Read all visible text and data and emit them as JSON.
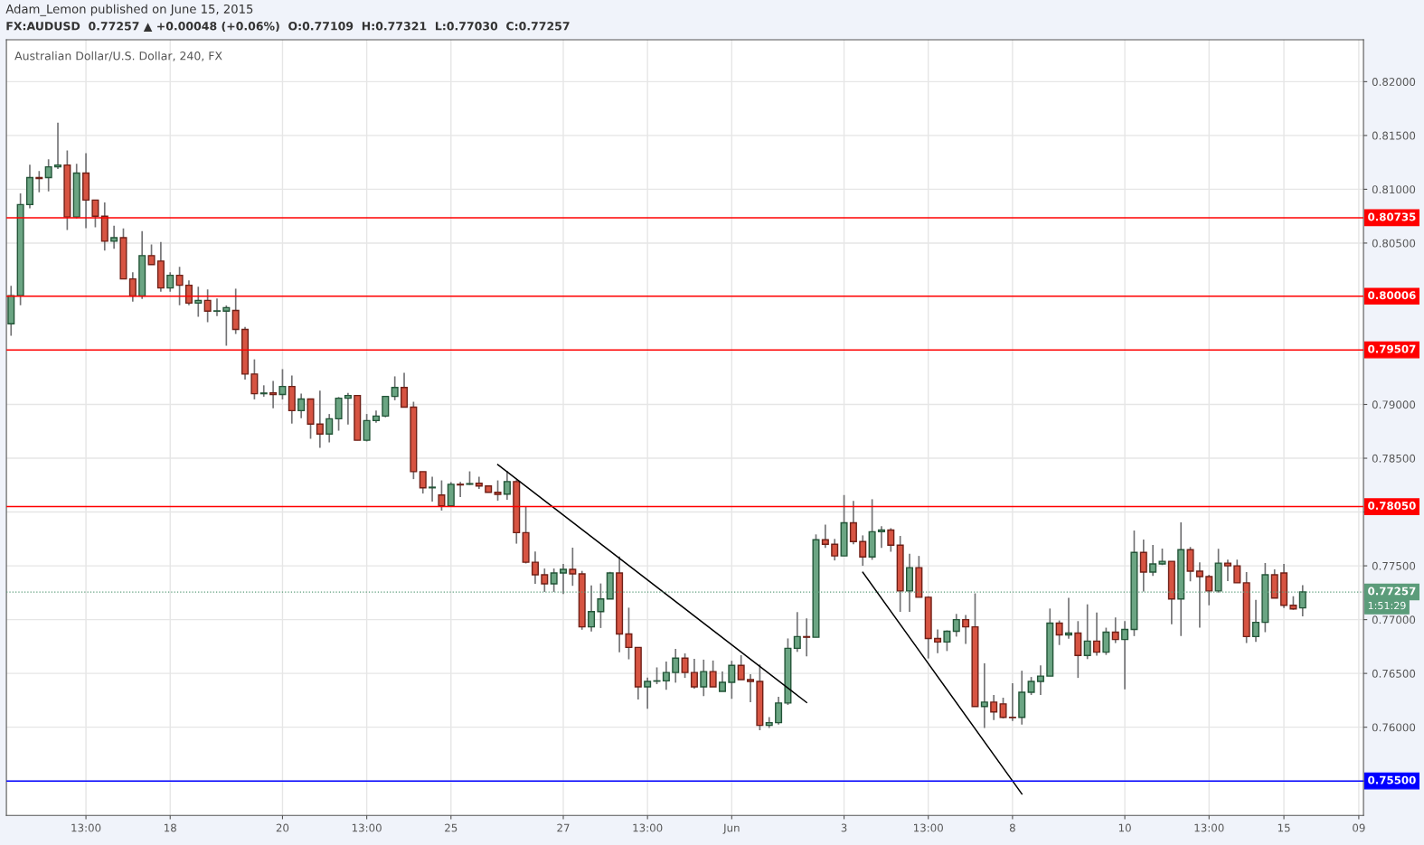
{
  "chart_data": {
    "type": "candlestick",
    "title": "Adam_Lemon published on June 15, 2015",
    "subtitle": "FX:AUDUSD  0.77257 ▲ +0.00048 (+0.06%)  O:0.77109  H:0.77321  L:0.77030  C:0.77257",
    "annotations": [
      "Australian Dollar/U.S. Dollar, 240, FX",
      "1:51:29"
    ],
    "categories": [
      null,
      null,
      null,
      null,
      null,
      null,
      null,
      null,
      "13:00",
      null,
      null,
      null,
      null,
      null,
      null,
      null,
      null,
      "18",
      null,
      null,
      null,
      null,
      null,
      null,
      null,
      null,
      null,
      null,
      null,
      "20",
      null,
      null,
      null,
      null,
      null,
      null,
      null,
      null,
      "13:00",
      null,
      null,
      null,
      null,
      null,
      null,
      null,
      null,
      "25",
      null,
      null,
      null,
      null,
      null,
      null,
      null,
      null,
      null,
      null,
      null,
      "27",
      null,
      null,
      null,
      null,
      null,
      null,
      null,
      null,
      "13:00",
      null,
      null,
      null,
      null,
      null,
      null,
      null,
      null,
      "Jun",
      null,
      null,
      null,
      null,
      null,
      null,
      null,
      null,
      null,
      null,
      null,
      "3",
      null,
      null,
      null,
      null,
      null,
      null,
      null,
      null,
      "13:00",
      null,
      null,
      null,
      null,
      null,
      null,
      null,
      null,
      "8",
      null,
      null,
      null,
      null,
      null,
      null,
      null,
      null,
      null,
      null,
      null,
      "10",
      null,
      null,
      null,
      null,
      null,
      null,
      null,
      null,
      "13:00",
      null,
      null,
      null,
      null,
      null,
      null,
      null,
      "15",
      null,
      null,
      null,
      null,
      null,
      null,
      null,
      "09"
    ],
    "ohlc": [
      [
        0.7975,
        0.80103,
        0.79639,
        0.80011
      ],
      [
        0.8001,
        0.80961,
        0.79922,
        0.80858
      ],
      [
        0.80858,
        0.81228,
        0.80822,
        0.81108
      ],
      [
        0.8111,
        0.81169,
        0.80972,
        0.811
      ],
      [
        0.81108,
        0.81278,
        0.80981,
        0.81208
      ],
      [
        0.81208,
        0.81619,
        0.81189,
        0.81225
      ],
      [
        0.81225,
        0.81361,
        0.80622,
        0.80742
      ],
      [
        0.80742,
        0.81236,
        0.80728,
        0.8115
      ],
      [
        0.8115,
        0.81336,
        0.80639,
        0.809
      ],
      [
        0.809,
        0.809,
        0.80647,
        0.8075
      ],
      [
        0.8075,
        0.80878,
        0.8043,
        0.80517
      ],
      [
        0.80517,
        0.80661,
        0.80447,
        0.8055
      ],
      [
        0.8055,
        0.80636,
        0.80167,
        0.80167
      ],
      [
        0.80167,
        0.80228,
        0.79956,
        0.80008
      ],
      [
        0.80008,
        0.80611,
        0.79981,
        0.80383
      ],
      [
        0.80383,
        0.80486,
        0.803,
        0.803
      ],
      [
        0.80333,
        0.80511,
        0.80047,
        0.80083
      ],
      [
        0.80083,
        0.80228,
        0.80047,
        0.802
      ],
      [
        0.802,
        0.80278,
        0.79922,
        0.80108
      ],
      [
        0.80108,
        0.80153,
        0.79922,
        0.79942
      ],
      [
        0.79942,
        0.80094,
        0.79814,
        0.79967
      ],
      [
        0.79967,
        0.8007,
        0.79764,
        0.79867
      ],
      [
        0.79867,
        0.79986,
        0.79822,
        0.7987
      ],
      [
        0.79867,
        0.7992,
        0.79546,
        0.799
      ],
      [
        0.79874,
        0.80076,
        0.79655,
        0.79697
      ],
      [
        0.79697,
        0.7972,
        0.79231,
        0.79283
      ],
      [
        0.79283,
        0.79419,
        0.79047,
        0.791
      ],
      [
        0.791,
        0.79178,
        0.79072,
        0.79106
      ],
      [
        0.79108,
        0.79219,
        0.78964,
        0.79092
      ],
      [
        0.79092,
        0.79328,
        0.79047,
        0.79167
      ],
      [
        0.79167,
        0.79269,
        0.78822,
        0.78942
      ],
      [
        0.78942,
        0.791,
        0.78872,
        0.7905
      ],
      [
        0.7905,
        0.7905,
        0.78681,
        0.78817
      ],
      [
        0.78817,
        0.79128,
        0.78597,
        0.78725
      ],
      [
        0.78725,
        0.78911,
        0.78647,
        0.78867
      ],
      [
        0.78867,
        0.79069,
        0.78756,
        0.79058
      ],
      [
        0.79058,
        0.79108,
        0.78814,
        0.79083
      ],
      [
        0.79083,
        0.79083,
        0.78667,
        0.78667
      ],
      [
        0.78667,
        0.78911,
        0.78656,
        0.7885
      ],
      [
        0.7885,
        0.78944,
        0.78831,
        0.78892
      ],
      [
        0.78892,
        0.79075,
        0.7888,
        0.79075
      ],
      [
        0.79075,
        0.79261,
        0.79039,
        0.79158
      ],
      [
        0.79158,
        0.79294,
        0.78975,
        0.78975
      ],
      [
        0.78975,
        0.79025,
        0.78306,
        0.78375
      ],
      [
        0.78375,
        0.78375,
        0.78172,
        0.78225
      ],
      [
        0.78225,
        0.78328,
        0.78097,
        0.78231
      ],
      [
        0.78158,
        0.78294,
        0.78014,
        0.78058
      ],
      [
        0.78058,
        0.78278,
        0.78058,
        0.78258
      ],
      [
        0.78258,
        0.7828,
        0.78139,
        0.78252
      ],
      [
        0.78258,
        0.78378,
        0.78252,
        0.78264
      ],
      [
        0.78267,
        0.78328,
        0.78214,
        0.78242
      ],
      [
        0.78242,
        0.78242,
        0.78183,
        0.78183
      ],
      [
        0.78183,
        0.78294,
        0.78106,
        0.78164
      ],
      [
        0.78167,
        0.78383,
        0.78114,
        0.78283
      ],
      [
        0.78283,
        0.783,
        0.77706,
        0.77808
      ],
      [
        0.77808,
        0.78053,
        0.77522,
        0.77533
      ],
      [
        0.77533,
        0.77633,
        0.77333,
        0.77417
      ],
      [
        0.77417,
        0.77475,
        0.77258,
        0.77333
      ],
      [
        0.77333,
        0.77475,
        0.77258,
        0.77433
      ],
      [
        0.77433,
        0.77517,
        0.77239,
        0.77467
      ],
      [
        0.77467,
        0.77669,
        0.77314,
        0.77425
      ],
      [
        0.77425,
        0.77453,
        0.76906,
        0.76933
      ],
      [
        0.76933,
        0.77319,
        0.76889,
        0.77075
      ],
      [
        0.77075,
        0.77336,
        0.76922,
        0.77192
      ],
      [
        0.77192,
        0.77444,
        0.77192,
        0.77433
      ],
      [
        0.77433,
        0.77586,
        0.76697,
        0.76867
      ],
      [
        0.76867,
        0.77111,
        0.76631,
        0.76742
      ],
      [
        0.76742,
        0.76742,
        0.76258,
        0.76375
      ],
      [
        0.76375,
        0.76461,
        0.76172,
        0.76425
      ],
      [
        0.76428,
        0.76556,
        0.764,
        0.76431
      ],
      [
        0.76431,
        0.76611,
        0.76347,
        0.76508
      ],
      [
        0.76508,
        0.76728,
        0.76414,
        0.76642
      ],
      [
        0.76642,
        0.76686,
        0.76458,
        0.76508
      ],
      [
        0.76508,
        0.76636,
        0.76358,
        0.76375
      ],
      [
        0.76375,
        0.76628,
        0.76289,
        0.76517
      ],
      [
        0.76517,
        0.7662,
        0.76375,
        0.76375
      ],
      [
        0.76333,
        0.76517,
        0.76333,
        0.76417
      ],
      [
        0.76417,
        0.76617,
        0.76264,
        0.76575
      ],
      [
        0.76575,
        0.76669,
        0.76442,
        0.76442
      ],
      [
        0.76442,
        0.76492,
        0.76233,
        0.76425
      ],
      [
        0.76425,
        0.76583,
        0.75972,
        0.76017
      ],
      [
        0.76017,
        0.76094,
        0.75992,
        0.76042
      ],
      [
        0.76042,
        0.76283,
        0.76025,
        0.76225
      ],
      [
        0.76225,
        0.76825,
        0.76208,
        0.76733
      ],
      [
        0.76733,
        0.7707,
        0.767,
        0.76842
      ],
      [
        0.76842,
        0.77011,
        0.76658,
        0.76836
      ],
      [
        0.76836,
        0.77792,
        0.76836,
        0.77742
      ],
      [
        0.77742,
        0.77883,
        0.77667,
        0.777
      ],
      [
        0.777,
        0.7775,
        0.7755,
        0.77592
      ],
      [
        0.77592,
        0.78158,
        0.77592,
        0.779
      ],
      [
        0.779,
        0.78103,
        0.777,
        0.77725
      ],
      [
        0.77725,
        0.77783,
        0.775,
        0.77583
      ],
      [
        0.77583,
        0.78119,
        0.77556,
        0.77817
      ],
      [
        0.77817,
        0.77869,
        0.77667,
        0.77833
      ],
      [
        0.77833,
        0.7785,
        0.77631,
        0.77692
      ],
      [
        0.77692,
        0.77778,
        0.77072,
        0.77267
      ],
      [
        0.77267,
        0.77611,
        0.77072,
        0.77483
      ],
      [
        0.77483,
        0.77592,
        0.77208,
        0.77208
      ],
      [
        0.77208,
        0.77217,
        0.76639,
        0.76825
      ],
      [
        0.76825,
        0.76908,
        0.76689,
        0.76792
      ],
      [
        0.76792,
        0.769,
        0.76708,
        0.76892
      ],
      [
        0.76892,
        0.77053,
        0.76842,
        0.77
      ],
      [
        0.77,
        0.77042,
        0.76775,
        0.76933
      ],
      [
        0.76933,
        0.77244,
        0.76192,
        0.76192
      ],
      [
        0.76192,
        0.76594,
        0.75992,
        0.76233
      ],
      [
        0.76233,
        0.763,
        0.76067,
        0.76142
      ],
      [
        0.76217,
        0.76275,
        0.76081,
        0.76092
      ],
      [
        0.76092,
        0.76408,
        0.76058,
        0.76089
      ],
      [
        0.76092,
        0.76525,
        0.76025,
        0.76325
      ],
      [
        0.76325,
        0.76467,
        0.763,
        0.76425
      ],
      [
        0.76425,
        0.76575,
        0.763,
        0.76475
      ],
      [
        0.76475,
        0.77103,
        0.76475,
        0.76967
      ],
      [
        0.76967,
        0.76992,
        0.76764,
        0.76858
      ],
      [
        0.76858,
        0.77203,
        0.76822,
        0.76875
      ],
      [
        0.76875,
        0.76986,
        0.76458,
        0.76667
      ],
      [
        0.76667,
        0.77142,
        0.76633,
        0.768
      ],
      [
        0.768,
        0.77067,
        0.76664,
        0.76697
      ],
      [
        0.76697,
        0.76925,
        0.76672,
        0.76883
      ],
      [
        0.76883,
        0.7702,
        0.76782,
        0.76815
      ],
      [
        0.76815,
        0.76986,
        0.76353,
        0.76908
      ],
      [
        0.76908,
        0.77828,
        0.76847,
        0.77625
      ],
      [
        0.77625,
        0.77744,
        0.77261,
        0.77442
      ],
      [
        0.77442,
        0.77694,
        0.77406,
        0.77517
      ],
      [
        0.77517,
        0.77661,
        0.77508,
        0.77542
      ],
      [
        0.77542,
        0.77542,
        0.76956,
        0.77192
      ],
      [
        0.77192,
        0.77903,
        0.76847,
        0.7765
      ],
      [
        0.7765,
        0.77675,
        0.77356,
        0.7745
      ],
      [
        0.7745,
        0.77533,
        0.76925,
        0.774
      ],
      [
        0.774,
        0.77417,
        0.77133,
        0.77267
      ],
      [
        0.77267,
        0.77658,
        0.7725,
        0.77525
      ],
      [
        0.77525,
        0.77558,
        0.77358,
        0.775
      ],
      [
        0.775,
        0.77558,
        0.77342,
        0.77342
      ],
      [
        0.77342,
        0.77442,
        0.76782,
        0.76842
      ],
      [
        0.76842,
        0.77183,
        0.76792,
        0.76975
      ],
      [
        0.76975,
        0.77525,
        0.76883,
        0.77417
      ],
      [
        0.77417,
        0.77467,
        0.772,
        0.772
      ],
      [
        0.77433,
        0.77517,
        0.77108,
        0.77133
      ],
      [
        0.77133,
        0.77217,
        0.77092,
        0.771
      ],
      [
        0.77109,
        0.77321,
        0.7703,
        0.77257
      ],
      null,
      null,
      null,
      null,
      null,
      null
    ],
    "series": [
      {
        "type": "line",
        "color": "#000000",
        "values": [
          null,
          null,
          null,
          null,
          null,
          null,
          null,
          null,
          null,
          null,
          null,
          null,
          null,
          null,
          null,
          null,
          null,
          null,
          null,
          null,
          null,
          null,
          null,
          null,
          null,
          null,
          null,
          null,
          null,
          null,
          null,
          null,
          null,
          null,
          null,
          null,
          null,
          null,
          null,
          null,
          null,
          null,
          null,
          null,
          null,
          null,
          null,
          null,
          null,
          null,
          null,
          null,
          0.7844,
          null,
          null,
          null,
          null,
          null,
          null,
          null,
          null,
          null,
          null,
          null,
          null,
          null,
          null,
          null,
          null,
          null,
          null,
          null,
          null,
          null,
          null,
          null,
          null,
          null,
          null,
          null,
          null,
          null,
          null,
          null,
          null,
          0.7623,
          null,
          null,
          null,
          null,
          null,
          null,
          null,
          null,
          null,
          null,
          null,
          null,
          null,
          null,
          null,
          null,
          null,
          null,
          null,
          null,
          null,
          null,
          null,
          null,
          null,
          null,
          null,
          null,
          null,
          null,
          null,
          null,
          null,
          null,
          null,
          null,
          null,
          null,
          null,
          null,
          null,
          null,
          null,
          null,
          null,
          null,
          null,
          null,
          null,
          null,
          null,
          null,
          null,
          null,
          null,
          null,
          null,
          null,
          null
        ]
      },
      {
        "type": "line",
        "color": "#000000",
        "values": [
          null,
          null,
          null,
          null,
          null,
          null,
          null,
          null,
          null,
          null,
          null,
          null,
          null,
          null,
          null,
          null,
          null,
          null,
          null,
          null,
          null,
          null,
          null,
          null,
          null,
          null,
          null,
          null,
          null,
          null,
          null,
          null,
          null,
          null,
          null,
          null,
          null,
          null,
          null,
          null,
          null,
          null,
          null,
          null,
          null,
          null,
          null,
          null,
          null,
          null,
          null,
          null,
          null,
          null,
          null,
          null,
          null,
          null,
          null,
          null,
          null,
          null,
          null,
          null,
          null,
          null,
          null,
          null,
          null,
          null,
          null,
          null,
          null,
          null,
          null,
          null,
          null,
          null,
          null,
          null,
          null,
          null,
          null,
          null,
          null,
          null,
          null,
          null,
          null,
          null,
          null,
          0.7744,
          null,
          null,
          null,
          null,
          null,
          null,
          null,
          null,
          null,
          null,
          null,
          null,
          null,
          null,
          null,
          null,
          0.7538,
          null,
          null,
          null,
          null,
          null,
          null,
          null,
          null,
          null,
          null,
          null,
          null,
          null,
          null,
          null,
          null,
          null,
          null,
          null,
          null,
          null,
          null,
          null,
          null,
          null,
          null,
          null,
          null,
          null,
          null,
          null,
          null,
          null,
          null,
          null,
          null
        ]
      }
    ],
    "ref_lines": [
      {
        "axis": "y",
        "value": 0.80735,
        "label": "0.80735",
        "color": "#ff0000"
      },
      {
        "axis": "y",
        "value": 0.80006,
        "label": "0.80006",
        "color": "#ff0000"
      },
      {
        "axis": "y",
        "value": 0.79507,
        "label": "0.79507",
        "color": "#ff0000"
      },
      {
        "axis": "y",
        "value": 0.7805,
        "label": "0.78050",
        "color": "#ff0000"
      },
      {
        "axis": "y",
        "value": 0.755,
        "label": "0.75500",
        "color": "#0000ff"
      },
      {
        "axis": "y",
        "value": 0.77257,
        "label": "0.77257",
        "color": "#5b9c7a",
        "line_style": "dotted"
      }
    ],
    "ylim": [
      0.7518,
      0.8239
    ],
    "yticks": [
      {
        "value": 0.755,
        "label": null
      },
      {
        "value": 0.76,
        "label": "0.76000"
      },
      {
        "value": 0.765,
        "label": "0.76500"
      },
      {
        "value": 0.77,
        "label": "0.77000"
      },
      {
        "value": 0.775,
        "label": "0.77500"
      },
      {
        "value": 0.78,
        "label": null
      },
      {
        "value": 0.785,
        "label": "0.78500"
      },
      {
        "value": 0.79,
        "label": "0.79000"
      },
      {
        "value": 0.805,
        "label": "0.80500"
      },
      {
        "value": 0.81,
        "label": "0.81000"
      },
      {
        "value": 0.815,
        "label": "0.81500"
      },
      {
        "value": 0.82,
        "label": "0.82000"
      }
    ],
    "grid": true
  }
}
